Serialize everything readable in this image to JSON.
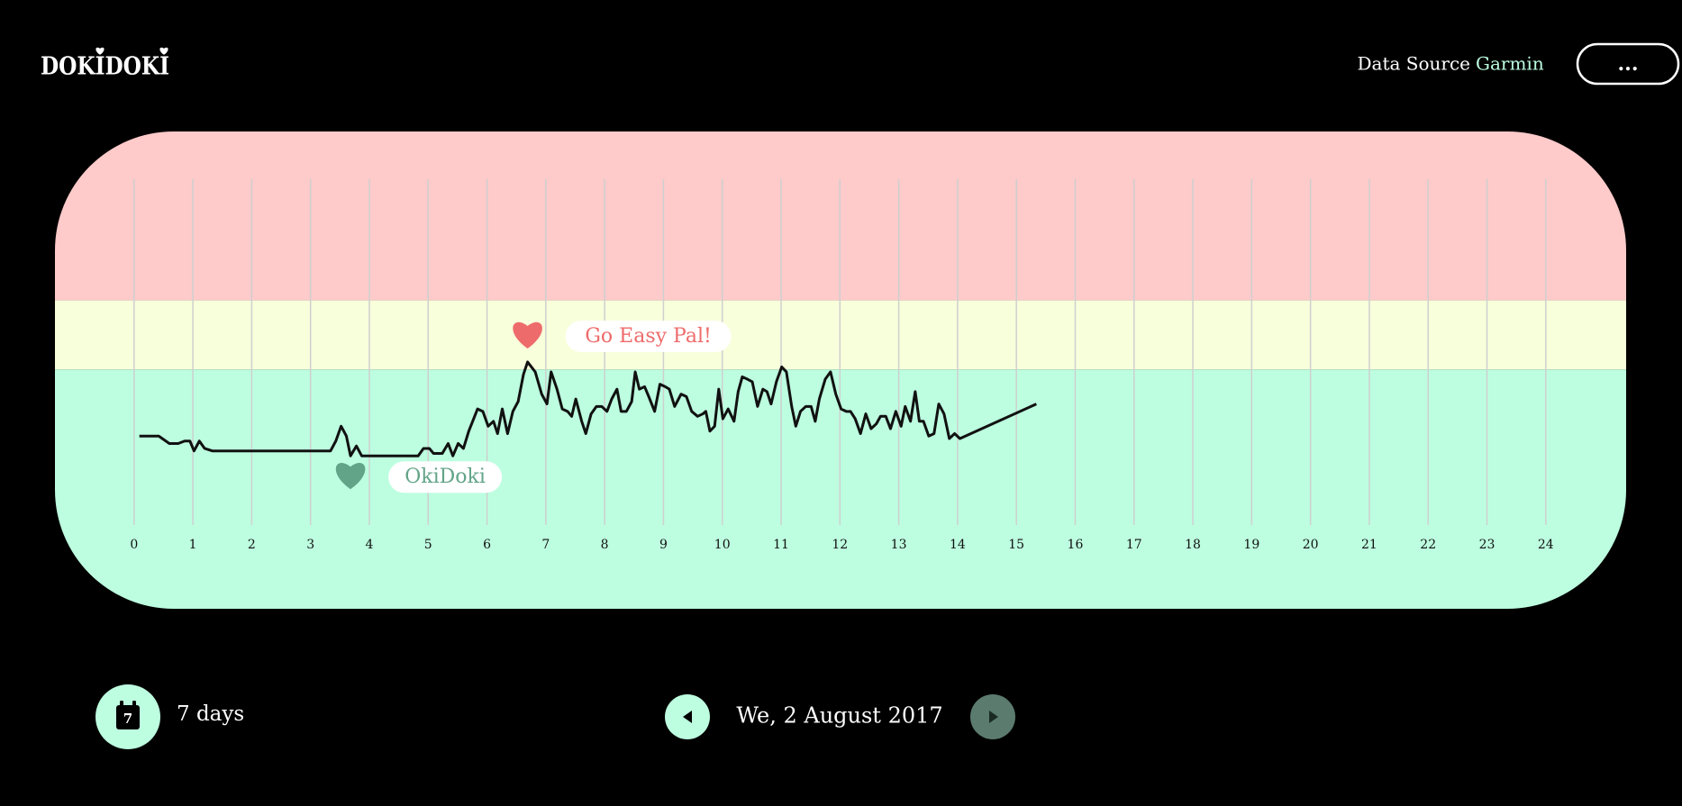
{
  "header": {
    "logo": "DOKIDOKI",
    "data_source_label": "Data Source",
    "data_source": "Garmin",
    "menu": "..."
  },
  "chart_data": {
    "type": "line",
    "x": [
      0.09,
      0.42,
      0.6,
      0.75,
      0.86,
      0.95,
      1.02,
      1.11,
      1.2,
      1.33,
      3.34,
      3.43,
      3.52,
      3.61,
      3.68,
      3.78,
      3.87,
      4.83,
      4.92,
      5.02,
      5.09,
      5.24,
      5.34,
      5.42,
      5.51,
      5.6,
      5.69,
      5.84,
      5.93,
      6.02,
      6.11,
      6.18,
      6.26,
      6.35,
      6.44,
      6.53,
      6.62,
      6.69,
      6.82,
      6.93,
      7.02,
      7.09,
      7.19,
      7.28,
      7.37,
      7.44,
      7.51,
      7.61,
      7.68,
      7.77,
      7.86,
      7.95,
      8.04,
      8.12,
      8.21,
      8.28,
      8.37,
      8.46,
      8.52,
      8.59,
      8.68,
      8.75,
      8.85,
      8.94,
      9.03,
      9.1,
      9.19,
      9.3,
      9.39,
      9.48,
      9.58,
      9.67,
      9.72,
      9.79,
      9.87,
      9.94,
      10.01,
      10.1,
      10.2,
      10.27,
      10.34,
      10.43,
      10.51,
      10.6,
      10.69,
      10.76,
      10.83,
      10.92,
      11.01,
      11.09,
      11.18,
      11.25,
      11.33,
      11.42,
      11.51,
      11.58,
      11.65,
      11.75,
      11.84,
      11.93,
      12.02,
      12.11,
      12.18,
      12.26,
      12.35,
      12.44,
      12.53,
      12.62,
      12.69,
      12.78,
      12.86,
      12.95,
      13.04,
      13.11,
      13.2,
      13.28,
      13.35,
      13.42,
      13.51,
      13.6,
      13.68,
      13.77,
      13.86,
      13.95,
      14.04,
      15.34
    ],
    "values": [
      76,
      76,
      73,
      73,
      74,
      74,
      70,
      74,
      71,
      70,
      70,
      74,
      80,
      76,
      68,
      72,
      68,
      68,
      71,
      71,
      69,
      69,
      73,
      68,
      73,
      71,
      78,
      87,
      86,
      80,
      82,
      77,
      87,
      77,
      86,
      90,
      101,
      106,
      102,
      93,
      89,
      102,
      95,
      87,
      86,
      84,
      91,
      82,
      77,
      85,
      88,
      88,
      86,
      91,
      95,
      86,
      86,
      90,
      102,
      95,
      96,
      92,
      86,
      97,
      96,
      95,
      88,
      93,
      92,
      86,
      84,
      85,
      86,
      78,
      80,
      95,
      83,
      87,
      82,
      94,
      100,
      99,
      98,
      88,
      95,
      94,
      89,
      98,
      104,
      102,
      88,
      80,
      86,
      88,
      88,
      82,
      91,
      99,
      102,
      93,
      87,
      86,
      86,
      83,
      77,
      85,
      79,
      81,
      84,
      84,
      79,
      86,
      80,
      88,
      82,
      94,
      82,
      82,
      76,
      77,
      89,
      85,
      75,
      77,
      75,
      89
    ],
    "color": "#111111",
    "xlim": [
      0,
      24
    ],
    "xticks": [
      0,
      1,
      2,
      3,
      4,
      5,
      6,
      7,
      8,
      9,
      10,
      11,
      12,
      13,
      14,
      15,
      16,
      17,
      18,
      19,
      20,
      21,
      22,
      23,
      24
    ],
    "ylim": [
      40,
      180
    ],
    "grid": true,
    "zone_bounds": [
      103,
      131
    ],
    "zone_colors": [
      "#bdfee0",
      "#f8ffdb",
      "#fecaca"
    ],
    "annotations": {
      "high": "Go Easy Pal!",
      "high_color": "#ee6b6b",
      "low": "OkiDoki",
      "low_color": "#62a487"
    }
  },
  "footer": {
    "calendar_day": "7",
    "range": "7 days",
    "date": "We, 2 August 2017"
  }
}
